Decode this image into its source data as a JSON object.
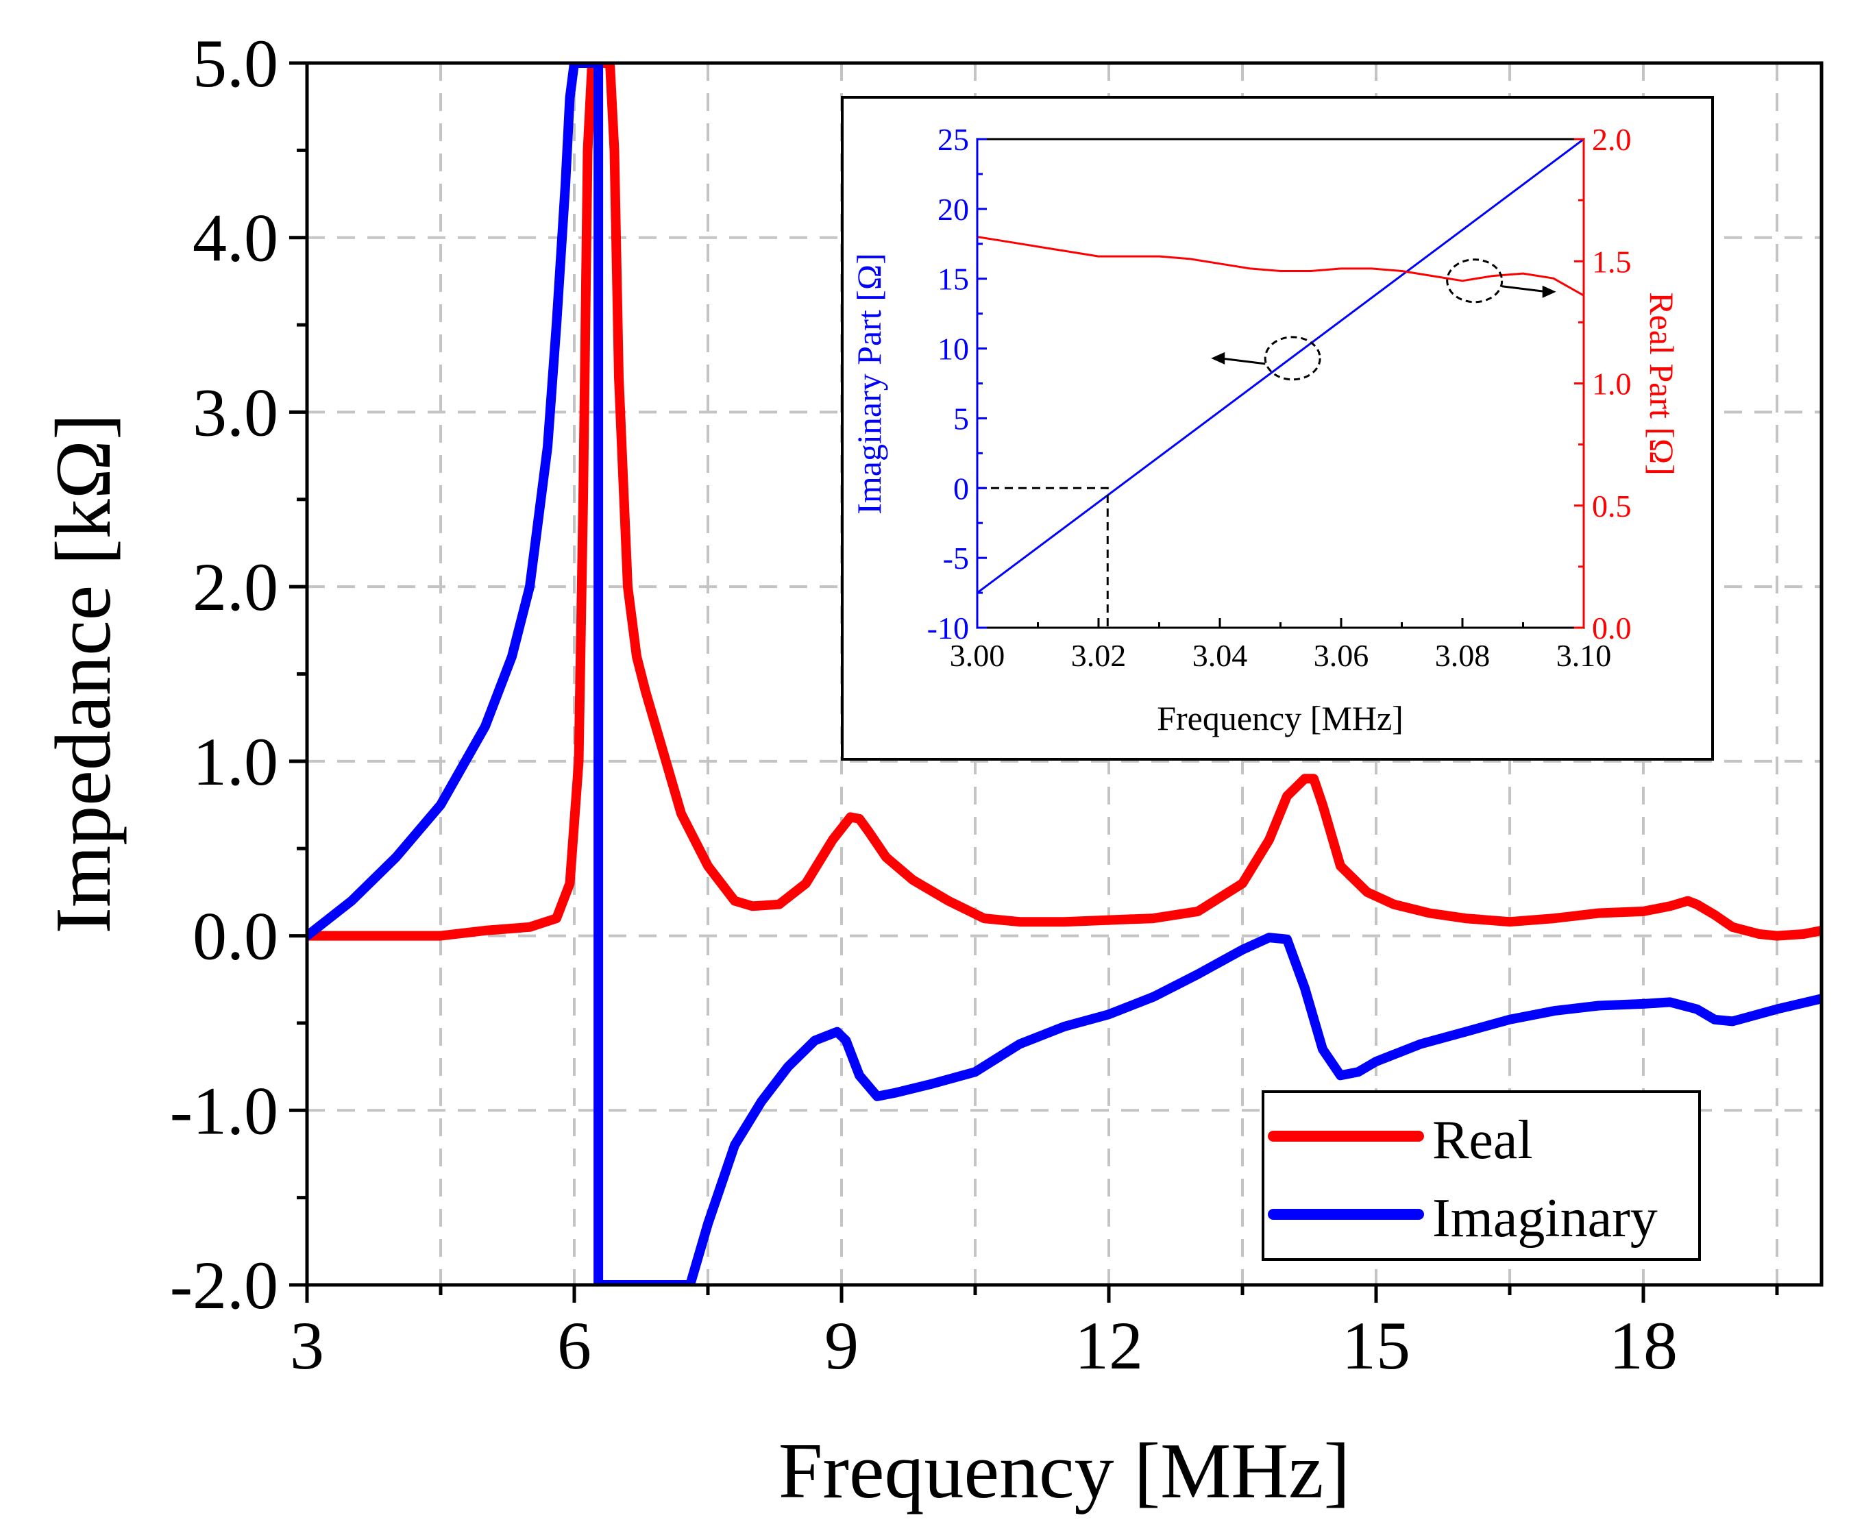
{
  "chart_data": [
    {
      "id": "main",
      "type": "line",
      "title": "",
      "xlabel": "Frequency [MHz]",
      "ylabel": "Impedance [kΩ]",
      "xlim": [
        3,
        20
      ],
      "ylim": [
        -2.0,
        5.0
      ],
      "xticks": [
        "3",
        "6",
        "9",
        "12",
        "15",
        "18"
      ],
      "yticks": [
        "-2.0",
        "-1.0",
        "0.0",
        "1.0",
        "2.0",
        "3.0",
        "4.0",
        "5.0"
      ],
      "grid": true,
      "legend": {
        "position": "bottom-right",
        "entries": [
          "Real",
          "Imaginary"
        ]
      },
      "series": [
        {
          "name": "Real",
          "color": "#ff0000",
          "x": [
            3.0,
            3.5,
            4.0,
            4.5,
            5.0,
            5.5,
            5.8,
            5.95,
            6.05,
            6.1,
            6.15,
            6.2,
            6.25,
            6.3,
            6.35,
            6.4,
            6.45,
            6.5,
            6.6,
            6.7,
            6.8,
            7.0,
            7.2,
            7.5,
            7.8,
            8.0,
            8.3,
            8.6,
            8.9,
            9.1,
            9.2,
            9.3,
            9.5,
            9.8,
            10.2,
            10.6,
            11.0,
            11.5,
            12.0,
            12.5,
            13.0,
            13.5,
            13.8,
            14.0,
            14.2,
            14.3,
            14.4,
            14.6,
            14.9,
            15.2,
            15.6,
            16.0,
            16.5,
            17.0,
            17.5,
            18.0,
            18.3,
            18.5,
            18.6,
            18.8,
            19.0,
            19.3,
            19.5,
            19.8,
            20.0
          ],
          "y": [
            0.0,
            0.0,
            0.0,
            0.0,
            0.03,
            0.05,
            0.1,
            0.3,
            1.0,
            2.5,
            4.5,
            5.0,
            5.0,
            5.0,
            5.0,
            5.0,
            4.5,
            3.2,
            2.0,
            1.6,
            1.4,
            1.05,
            0.7,
            0.4,
            0.2,
            0.17,
            0.18,
            0.3,
            0.55,
            0.68,
            0.67,
            0.6,
            0.45,
            0.32,
            0.2,
            0.1,
            0.08,
            0.08,
            0.09,
            0.1,
            0.14,
            0.3,
            0.55,
            0.8,
            0.9,
            0.9,
            0.75,
            0.4,
            0.25,
            0.18,
            0.13,
            0.1,
            0.08,
            0.1,
            0.13,
            0.14,
            0.17,
            0.2,
            0.18,
            0.12,
            0.05,
            0.01,
            0.0,
            0.01,
            0.03
          ]
        },
        {
          "name": "Imaginary",
          "color": "#0000ff",
          "x": [
            3.0,
            3.5,
            4.0,
            4.5,
            5.0,
            5.3,
            5.5,
            5.7,
            5.8,
            5.9,
            5.95,
            6.0,
            6.27,
            6.27,
            6.27,
            7.3,
            7.5,
            7.8,
            8.1,
            8.4,
            8.7,
            8.95,
            9.05,
            9.2,
            9.4,
            9.6,
            10.0,
            10.5,
            11.0,
            11.5,
            12.0,
            12.5,
            13.0,
            13.5,
            13.8,
            14.0,
            14.2,
            14.4,
            14.6,
            14.8,
            15.0,
            15.5,
            16.0,
            16.5,
            17.0,
            17.5,
            18.0,
            18.3,
            18.6,
            18.8,
            19.0,
            19.5,
            20.0
          ],
          "y": [
            0.0,
            0.2,
            0.45,
            0.75,
            1.2,
            1.6,
            2.0,
            2.8,
            3.5,
            4.3,
            4.8,
            5.0,
            5.0,
            0.0,
            -2.0,
            -2.0,
            -1.65,
            -1.2,
            -0.95,
            -0.75,
            -0.6,
            -0.55,
            -0.6,
            -0.8,
            -0.92,
            -0.9,
            -0.85,
            -0.78,
            -0.62,
            -0.52,
            -0.45,
            -0.35,
            -0.22,
            -0.08,
            -0.01,
            -0.02,
            -0.3,
            -0.65,
            -0.8,
            -0.78,
            -0.72,
            -0.62,
            -0.55,
            -0.48,
            -0.43,
            -0.4,
            -0.39,
            -0.38,
            -0.42,
            -0.48,
            -0.49,
            -0.42,
            -0.36
          ]
        }
      ]
    },
    {
      "id": "inset",
      "type": "line",
      "title": "",
      "xlabel": "Frequency [MHz]",
      "ylabel_left": "Imaginary Part [Ω]",
      "ylabel_right": "Real Part [Ω]",
      "xlim": [
        3.0,
        3.1
      ],
      "ylim_left": [
        -10,
        25
      ],
      "ylim_right": [
        0.0,
        2.0
      ],
      "xticks": [
        "3.00",
        "3.02",
        "3.04",
        "3.06",
        "3.08",
        "3.10"
      ],
      "yticks_left": [
        "-10",
        "-5",
        "0",
        "5",
        "10",
        "15",
        "20",
        "25"
      ],
      "yticks_right": [
        "0.0",
        "0.5",
        "1.0",
        "1.5",
        "2.0"
      ],
      "colors": {
        "left_axis": "#0000ff",
        "right_axis": "#ff0000"
      },
      "annotations": [
        {
          "type": "dashed-crosshair",
          "x": 3.0215,
          "y": 0
        },
        {
          "type": "circle-arrow",
          "points_to": "left-axis",
          "x": 3.052,
          "y": 9.3
        },
        {
          "type": "circle-arrow",
          "points_to": "right-axis",
          "x": 3.082,
          "y": 1.42
        }
      ],
      "series": [
        {
          "name": "Imaginary",
          "axis": "left",
          "color": "#0000ff",
          "x": [
            3.0,
            3.1
          ],
          "y": [
            -7.5,
            25.0
          ]
        },
        {
          "name": "Real",
          "axis": "right",
          "color": "#ff0000",
          "x": [
            3.0,
            3.005,
            3.01,
            3.015,
            3.02,
            3.025,
            3.03,
            3.035,
            3.04,
            3.045,
            3.05,
            3.055,
            3.06,
            3.065,
            3.07,
            3.075,
            3.08,
            3.085,
            3.09,
            3.095,
            3.1
          ],
          "y": [
            1.6,
            1.58,
            1.56,
            1.54,
            1.52,
            1.52,
            1.52,
            1.51,
            1.49,
            1.47,
            1.46,
            1.46,
            1.47,
            1.47,
            1.46,
            1.44,
            1.42,
            1.44,
            1.45,
            1.43,
            1.36
          ]
        }
      ]
    }
  ]
}
